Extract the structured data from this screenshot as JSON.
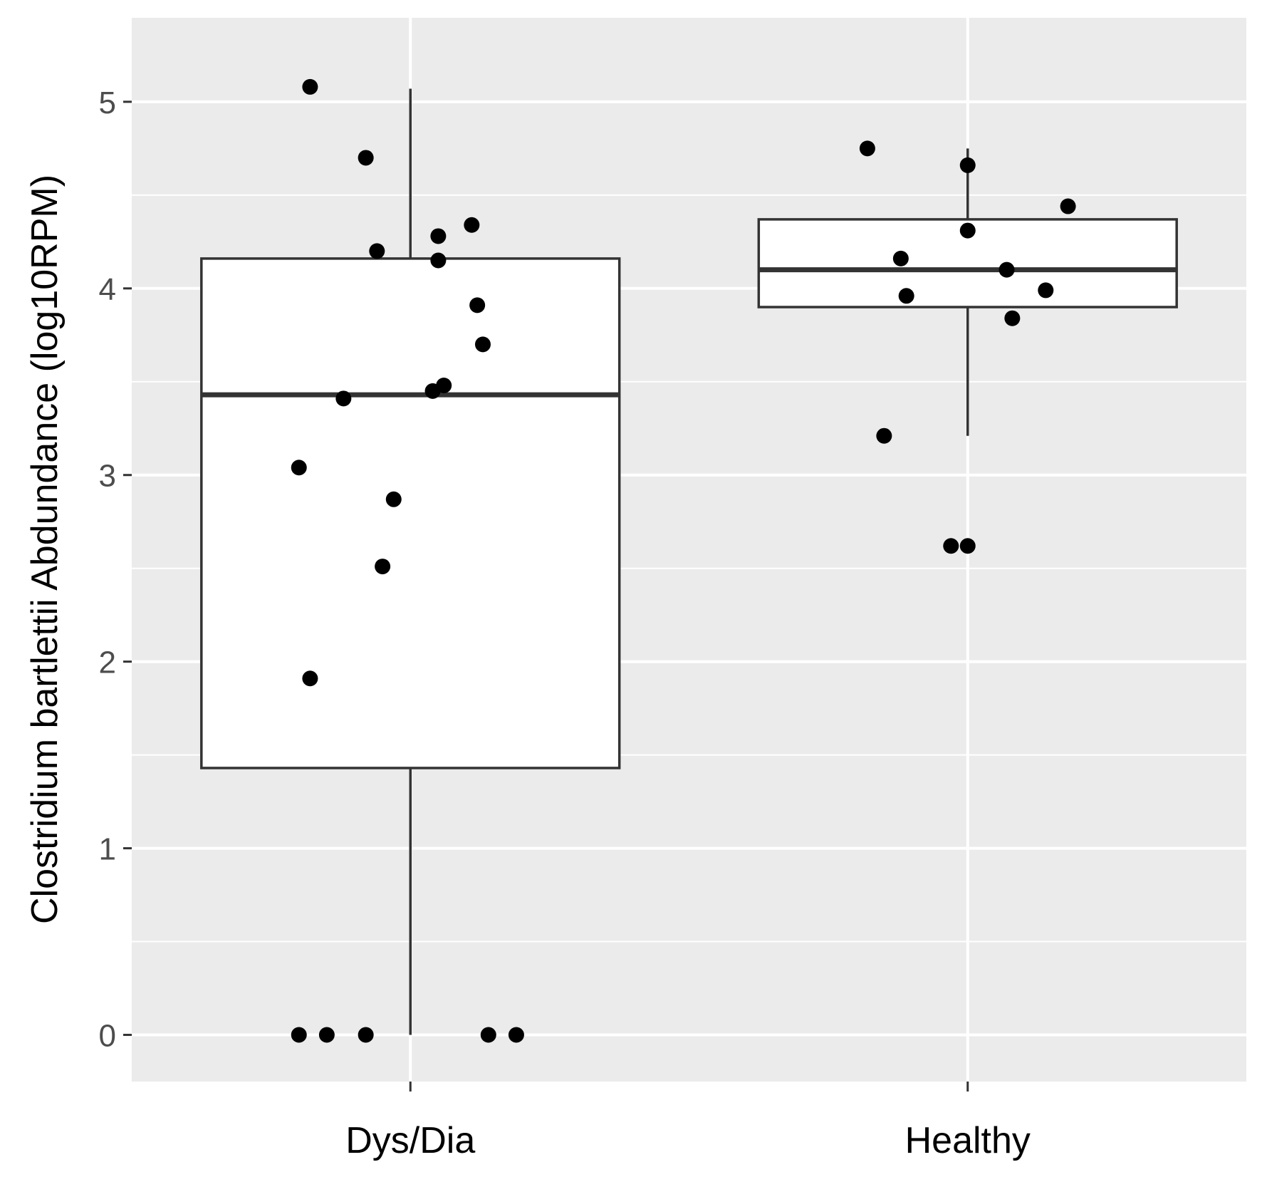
{
  "chart_data": {
    "type": "box",
    "title": "",
    "xlabel": "",
    "ylabel": "Clostridium bartlettii Abdundance (log10RPM)",
    "ylim": [
      -0.25,
      5.45
    ],
    "yticks": [
      0,
      1,
      2,
      3,
      4,
      5
    ],
    "ytick_labels": [
      "0",
      "1",
      "2",
      "3",
      "4",
      "5"
    ],
    "grid": true,
    "panel_background": "#ebebeb",
    "grid_color": "#ffffff",
    "point_color": "#000000",
    "box_fill": "#ffffff",
    "box_line_color": "#333333",
    "categories": [
      "Dys/Dia",
      "Healthy"
    ],
    "boxes": [
      {
        "category": "Dys/Dia",
        "whisker_low": 0.0,
        "q1": 1.43,
        "median": 3.43,
        "q3": 4.16,
        "whisker_high": 5.07,
        "points": [
          {
            "jitter": -0.18,
            "y": 5.08
          },
          {
            "jitter": -0.08,
            "y": 4.7
          },
          {
            "jitter": 0.11,
            "y": 4.34
          },
          {
            "jitter": 0.05,
            "y": 4.28
          },
          {
            "jitter": -0.06,
            "y": 4.2
          },
          {
            "jitter": 0.05,
            "y": 4.15
          },
          {
            "jitter": 0.12,
            "y": 3.91
          },
          {
            "jitter": 0.13,
            "y": 3.7
          },
          {
            "jitter": 0.06,
            "y": 3.48
          },
          {
            "jitter": 0.04,
            "y": 3.45
          },
          {
            "jitter": -0.12,
            "y": 3.41
          },
          {
            "jitter": -0.2,
            "y": 3.04
          },
          {
            "jitter": -0.03,
            "y": 2.87
          },
          {
            "jitter": -0.05,
            "y": 2.51
          },
          {
            "jitter": -0.18,
            "y": 1.91
          },
          {
            "jitter": -0.2,
            "y": 0.0
          },
          {
            "jitter": -0.15,
            "y": 0.0
          },
          {
            "jitter": -0.08,
            "y": 0.0
          },
          {
            "jitter": 0.14,
            "y": 0.0
          },
          {
            "jitter": 0.19,
            "y": 0.0
          }
        ]
      },
      {
        "category": "Healthy",
        "whisker_low": 3.21,
        "q1": 3.9,
        "median": 4.1,
        "q3": 4.37,
        "whisker_high": 4.75,
        "points": [
          {
            "jitter": -0.18,
            "y": 4.75
          },
          {
            "jitter": 0.0,
            "y": 4.66
          },
          {
            "jitter": 0.18,
            "y": 4.44
          },
          {
            "jitter": 0.0,
            "y": 4.31
          },
          {
            "jitter": -0.12,
            "y": 4.16
          },
          {
            "jitter": 0.07,
            "y": 4.1
          },
          {
            "jitter": 0.14,
            "y": 3.99
          },
          {
            "jitter": -0.11,
            "y": 3.96
          },
          {
            "jitter": 0.08,
            "y": 3.84
          },
          {
            "jitter": -0.15,
            "y": 3.21
          },
          {
            "jitter": -0.03,
            "y": 2.62
          },
          {
            "jitter": 0.0,
            "y": 2.62
          }
        ]
      }
    ]
  }
}
